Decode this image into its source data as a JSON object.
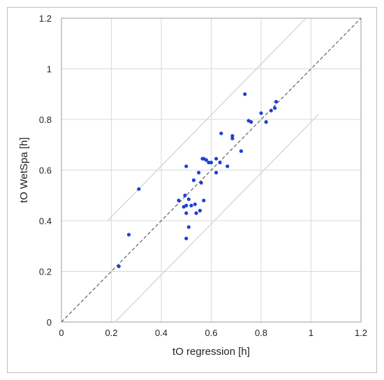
{
  "chart_data": {
    "type": "scatter",
    "xlabel": "tO regression [h]",
    "ylabel": "tO WetSpa [h]",
    "xlim": [
      0,
      1.2
    ],
    "ylim": [
      0,
      1.2
    ],
    "x_ticks": [
      "0",
      "0.2",
      "0.4",
      "0.6",
      "0.8",
      "1",
      "1.2"
    ],
    "y_ticks": [
      "0",
      "0.2",
      "0.4",
      "0.6",
      "0.8",
      "1",
      "1.2"
    ],
    "grid": true,
    "point_color": "#1f3fd6",
    "points": [
      [
        0.23,
        0.22
      ],
      [
        0.27,
        0.345
      ],
      [
        0.31,
        0.525
      ],
      [
        0.47,
        0.48
      ],
      [
        0.49,
        0.455
      ],
      [
        0.495,
        0.5
      ],
      [
        0.5,
        0.615
      ],
      [
        0.5,
        0.46
      ],
      [
        0.5,
        0.43
      ],
      [
        0.5,
        0.33
      ],
      [
        0.51,
        0.485
      ],
      [
        0.51,
        0.375
      ],
      [
        0.52,
        0.46
      ],
      [
        0.53,
        0.56
      ],
      [
        0.535,
        0.465
      ],
      [
        0.54,
        0.43
      ],
      [
        0.55,
        0.59
      ],
      [
        0.555,
        0.44
      ],
      [
        0.56,
        0.55
      ],
      [
        0.565,
        0.645
      ],
      [
        0.57,
        0.645
      ],
      [
        0.57,
        0.48
      ],
      [
        0.58,
        0.64
      ],
      [
        0.59,
        0.63
      ],
      [
        0.6,
        0.63
      ],
      [
        0.62,
        0.59
      ],
      [
        0.62,
        0.645
      ],
      [
        0.635,
        0.63
      ],
      [
        0.64,
        0.745
      ],
      [
        0.665,
        0.615
      ],
      [
        0.685,
        0.735
      ],
      [
        0.685,
        0.725
      ],
      [
        0.72,
        0.675
      ],
      [
        0.735,
        0.9
      ],
      [
        0.75,
        0.795
      ],
      [
        0.76,
        0.79
      ],
      [
        0.8,
        0.825
      ],
      [
        0.82,
        0.79
      ],
      [
        0.84,
        0.835
      ],
      [
        0.855,
        0.845
      ],
      [
        0.86,
        0.87
      ]
    ],
    "reference_lines": [
      {
        "style": "dashed",
        "color": "#555555",
        "points": [
          [
            0,
            0
          ],
          [
            1.2,
            1.2
          ]
        ]
      },
      {
        "style": "solid",
        "color": "#d0d0d0",
        "points": [
          [
            0.185,
            0.4
          ],
          [
            0.98,
            1.2
          ]
        ]
      },
      {
        "style": "solid",
        "color": "#d0d0d0",
        "points": [
          [
            0.215,
            0
          ],
          [
            1.03,
            0.82
          ]
        ]
      }
    ]
  }
}
